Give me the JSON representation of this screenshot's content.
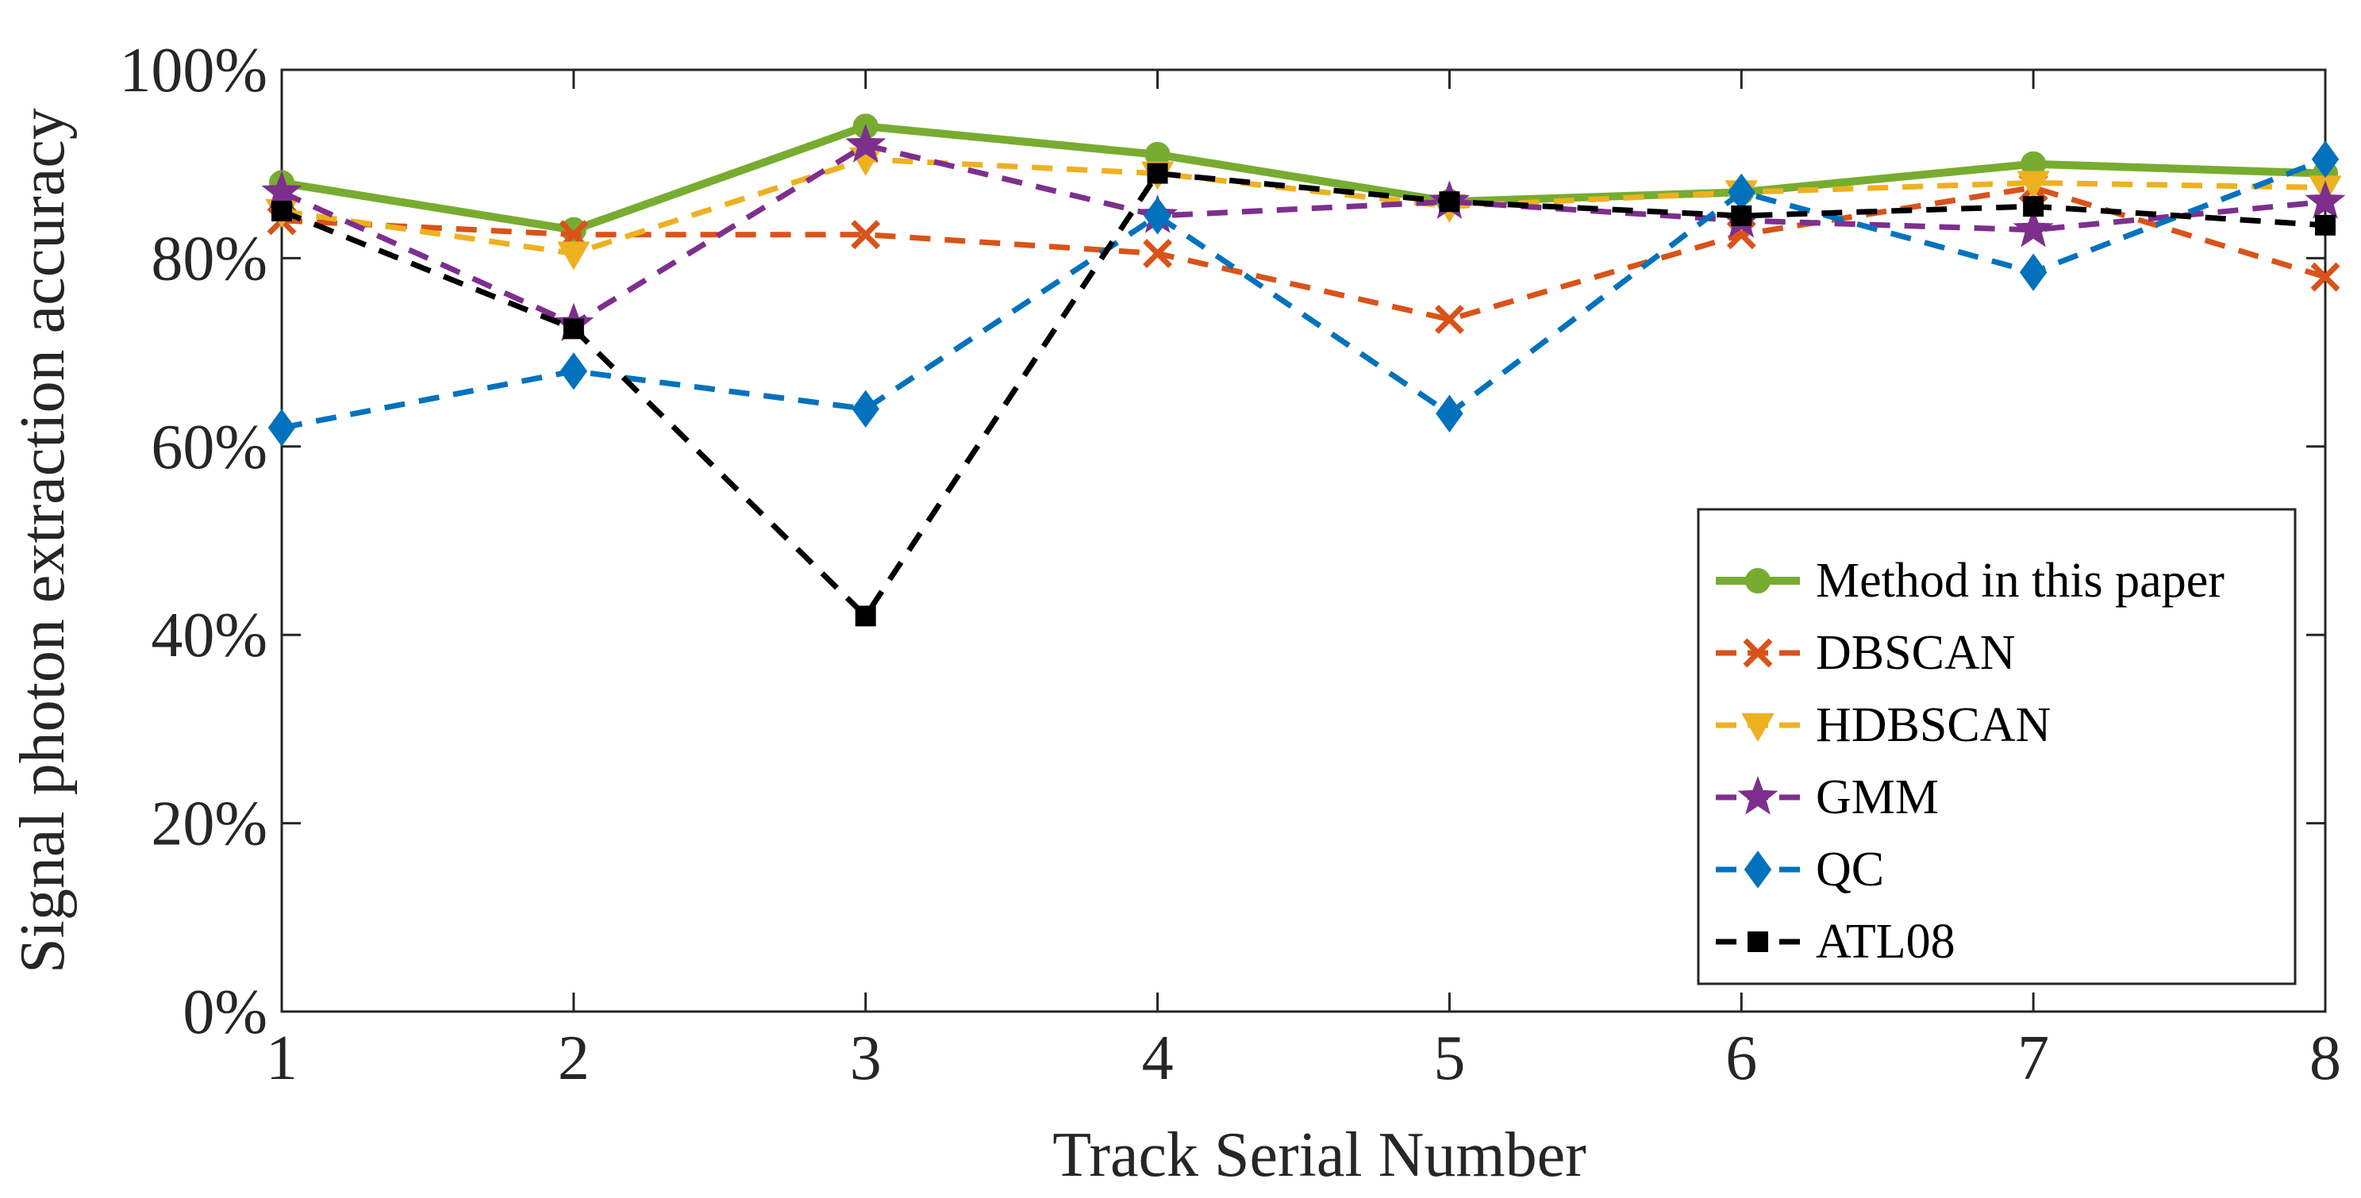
{
  "chart_data": {
    "type": "line",
    "title": "",
    "xlabel": "Track Serial Number",
    "ylabel": "Signal photon extraction accuracy",
    "x": [
      1,
      2,
      3,
      4,
      5,
      6,
      7,
      8
    ],
    "xticks": [
      "1",
      "2",
      "3",
      "4",
      "5",
      "6",
      "7",
      "8"
    ],
    "xlim": [
      1,
      8
    ],
    "ylim": [
      0,
      100
    ],
    "yticks": [
      0,
      20,
      40,
      60,
      80,
      100
    ],
    "ytick_labels": [
      "0%",
      "20%",
      "40%",
      "60%",
      "80%",
      "100%"
    ],
    "grid": false,
    "legend_position": "bottom-right",
    "series": [
      {
        "name": "Method in this paper",
        "values": [
          88,
          83,
          94,
          91,
          86,
          87,
          90,
          89
        ],
        "color": "#77AC30",
        "dash": "solid",
        "marker": "circle"
      },
      {
        "name": "DBSCAN",
        "values": [
          84,
          82.5,
          82.5,
          80.5,
          73.5,
          82.5,
          87.5,
          78
        ],
        "color": "#D95319",
        "dash": "dashed",
        "marker": "x"
      },
      {
        "name": "HDBSCAN",
        "values": [
          85,
          80.5,
          90.5,
          89,
          85.5,
          87,
          88,
          87.5
        ],
        "color": "#EDB120",
        "dash": "dashed",
        "marker": "triangle-down"
      },
      {
        "name": "GMM",
        "values": [
          87,
          73,
          92,
          84.5,
          86,
          84,
          83,
          86
        ],
        "color": "#7E2F8E",
        "dash": "dashed",
        "marker": "star"
      },
      {
        "name": "QC",
        "values": [
          62,
          68,
          64,
          84.5,
          63.5,
          87,
          78.5,
          90.5
        ],
        "color": "#0072BD",
        "dash": "dashed",
        "marker": "diamond"
      },
      {
        "name": "ATL08",
        "values": [
          85,
          72.5,
          42,
          89,
          86,
          84.5,
          85.5,
          83.5
        ],
        "color": "#000000",
        "dash": "dashed",
        "marker": "square"
      }
    ]
  }
}
